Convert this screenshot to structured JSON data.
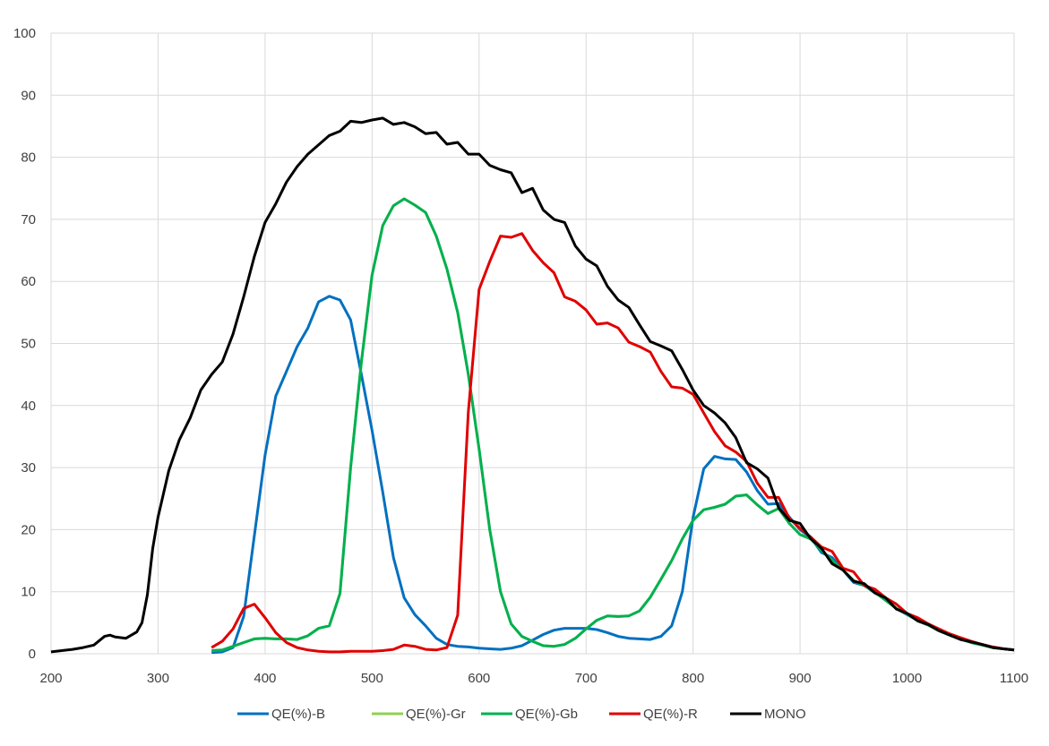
{
  "chart_data": {
    "type": "line",
    "title": "",
    "xlabel": "",
    "ylabel": "",
    "xlim": [
      200,
      1100
    ],
    "ylim": [
      0,
      100
    ],
    "xticks": [
      200,
      300,
      400,
      500,
      600,
      700,
      800,
      900,
      1000,
      1100
    ],
    "yticks": [
      0,
      10,
      20,
      30,
      40,
      50,
      60,
      70,
      80,
      90,
      100
    ],
    "grid": true,
    "legend_position": "bottom",
    "series": [
      {
        "name": "QE(%)-B",
        "color": "#0070c0",
        "x": [
          350,
          360,
          370,
          380,
          390,
          400,
          410,
          420,
          430,
          440,
          450,
          460,
          470,
          480,
          490,
          500,
          510,
          520,
          530,
          540,
          550,
          560,
          570,
          580,
          590,
          600,
          610,
          620,
          630,
          640,
          650,
          660,
          670,
          680,
          690,
          700,
          710,
          720,
          730,
          740,
          750,
          760,
          770,
          780,
          790,
          800,
          810,
          820,
          830,
          840,
          850,
          860,
          870,
          880,
          890,
          900,
          910,
          920,
          930,
          940,
          950,
          960,
          970,
          980,
          990,
          1000,
          1010,
          1020,
          1030,
          1040,
          1050,
          1060,
          1070,
          1080,
          1090,
          1100
        ],
        "y": [
          0.2,
          0.3,
          1,
          6,
          19,
          32,
          41.5,
          45.5,
          49.5,
          52.5,
          56.7,
          57.6,
          57,
          53.8,
          45,
          36,
          26,
          15.5,
          9,
          6.3,
          4.5,
          2.5,
          1.5,
          1.2,
          1.1,
          0.9,
          0.8,
          0.7,
          0.9,
          1.3,
          2.2,
          3.1,
          3.8,
          4.1,
          4.1,
          4.1,
          3.9,
          3.4,
          2.8,
          2.5,
          2.4,
          2.3,
          2.8,
          4.5,
          10,
          22,
          29.8,
          31.8,
          31.4,
          31.3,
          29.3,
          26.3,
          24.1,
          24.2,
          22,
          20,
          18.7,
          16.3,
          15.5,
          13.5,
          11.5,
          11,
          9.8,
          8.8,
          7.3,
          6.3,
          5.4,
          4.7,
          3.8,
          3,
          2.4,
          1.8,
          1.5,
          1.1,
          0.8,
          0.6
        ]
      },
      {
        "name": "QE(%)-Gr",
        "color": "#92d050",
        "x": [
          350,
          360,
          370,
          380,
          390,
          400,
          410,
          420,
          430,
          440,
          450,
          460,
          470,
          480,
          490,
          500,
          510,
          520,
          530,
          540,
          550,
          560,
          570,
          580,
          590,
          600,
          610,
          620,
          630,
          640,
          650,
          660,
          670,
          680,
          690,
          700,
          710,
          720,
          730,
          740,
          750,
          760,
          770,
          780,
          790,
          800,
          810,
          820,
          830,
          840,
          850,
          860,
          870,
          880,
          890,
          900,
          910,
          920,
          930,
          940,
          950,
          960,
          970,
          980,
          990,
          1000,
          1010,
          1020,
          1030,
          1040,
          1050,
          1060,
          1070,
          1080,
          1090,
          1100
        ],
        "y": [
          0.5,
          0.6,
          1.2,
          1.8,
          2.4,
          2.5,
          2.4,
          2.4,
          2.3,
          2.9,
          4.1,
          4.5,
          9.7,
          30,
          47,
          61,
          69,
          72.2,
          73.3,
          72.3,
          71.1,
          67.3,
          62,
          55,
          45,
          33,
          20,
          10,
          4.8,
          2.8,
          2,
          1.3,
          1.2,
          1.5,
          2.5,
          4,
          5.4,
          6.1,
          6,
          6.1,
          6.9,
          9.1,
          12,
          15,
          18.5,
          21.5,
          23.2,
          23.6,
          24.1,
          25.4,
          25.6,
          24,
          22.6,
          23.4,
          21,
          19.2,
          18.5,
          16.7,
          15,
          13.5,
          11.8,
          11,
          9.9,
          8.6,
          7.3,
          6.4,
          5.3,
          4.6,
          3.7,
          3,
          2.4,
          1.8,
          1.4,
          1,
          0.8,
          0.6
        ]
      },
      {
        "name": "QE(%)-Gb",
        "color": "#00b050",
        "x": [
          350,
          360,
          370,
          380,
          390,
          400,
          410,
          420,
          430,
          440,
          450,
          460,
          470,
          480,
          490,
          500,
          510,
          520,
          530,
          540,
          550,
          560,
          570,
          580,
          590,
          600,
          610,
          620,
          630,
          640,
          650,
          660,
          670,
          680,
          690,
          700,
          710,
          720,
          730,
          740,
          750,
          760,
          770,
          780,
          790,
          800,
          810,
          820,
          830,
          840,
          850,
          860,
          870,
          880,
          890,
          900,
          910,
          920,
          930,
          940,
          950,
          960,
          970,
          980,
          990,
          1000,
          1010,
          1020,
          1030,
          1040,
          1050,
          1060,
          1070,
          1080,
          1090,
          1100
        ],
        "y": [
          0.5,
          0.6,
          1.2,
          1.8,
          2.4,
          2.5,
          2.4,
          2.4,
          2.3,
          2.9,
          4.1,
          4.5,
          9.7,
          30,
          47,
          61,
          69,
          72.2,
          73.3,
          72.3,
          71.1,
          67.3,
          62,
          55,
          45,
          33,
          20,
          10,
          4.8,
          2.8,
          2,
          1.3,
          1.2,
          1.5,
          2.5,
          4,
          5.4,
          6.1,
          6,
          6.1,
          6.9,
          9.1,
          12,
          15,
          18.5,
          21.5,
          23.2,
          23.6,
          24.1,
          25.4,
          25.6,
          24,
          22.6,
          23.4,
          21,
          19.2,
          18.5,
          16.7,
          15,
          13.5,
          11.8,
          11,
          9.9,
          8.6,
          7.3,
          6.4,
          5.3,
          4.6,
          3.7,
          3,
          2.4,
          1.8,
          1.4,
          1,
          0.8,
          0.6
        ]
      },
      {
        "name": "QE(%)-R",
        "color": "#e00000",
        "x": [
          350,
          360,
          370,
          380,
          390,
          400,
          410,
          420,
          430,
          440,
          450,
          460,
          470,
          480,
          490,
          500,
          510,
          520,
          530,
          540,
          550,
          560,
          570,
          580,
          590,
          600,
          610,
          620,
          630,
          640,
          650,
          660,
          670,
          680,
          690,
          700,
          710,
          720,
          730,
          740,
          750,
          760,
          770,
          780,
          790,
          800,
          810,
          820,
          830,
          840,
          850,
          860,
          870,
          880,
          890,
          900,
          910,
          920,
          930,
          940,
          950,
          960,
          970,
          980,
          990,
          1000,
          1010,
          1020,
          1030,
          1040,
          1050,
          1060,
          1070,
          1080,
          1090,
          1100
        ],
        "y": [
          1,
          2,
          4,
          7.3,
          8,
          5.8,
          3.4,
          1.8,
          1,
          0.6,
          0.4,
          0.3,
          0.3,
          0.4,
          0.4,
          0.4,
          0.5,
          0.7,
          1.4,
          1.2,
          0.7,
          0.6,
          1,
          6.2,
          39,
          58.7,
          63.2,
          67.3,
          67.1,
          67.7,
          65,
          63,
          61.4,
          57.5,
          56.8,
          55.4,
          53.1,
          53.3,
          52.5,
          50.2,
          49.5,
          48.6,
          45.5,
          43,
          42.8,
          41.8,
          38.8,
          35.8,
          33.5,
          32.5,
          31,
          27.5,
          25.2,
          25.2,
          21.8,
          20.2,
          18.8,
          17.2,
          16.5,
          13.8,
          13.2,
          11,
          10.4,
          9,
          8,
          6.5,
          5.8,
          4.8,
          4,
          3.2,
          2.6,
          2,
          1.5,
          1.1,
          0.8,
          0.6
        ]
      },
      {
        "name": "MONO",
        "color": "#000000",
        "x": [
          200,
          210,
          220,
          230,
          240,
          250,
          255,
          260,
          270,
          280,
          285,
          290,
          295,
          300,
          310,
          320,
          330,
          340,
          350,
          360,
          370,
          380,
          390,
          400,
          410,
          420,
          430,
          440,
          450,
          460,
          470,
          480,
          490,
          500,
          510,
          520,
          530,
          540,
          550,
          560,
          570,
          580,
          590,
          600,
          610,
          620,
          630,
          640,
          650,
          660,
          670,
          680,
          690,
          700,
          710,
          720,
          730,
          740,
          750,
          760,
          770,
          780,
          790,
          800,
          810,
          820,
          830,
          840,
          850,
          860,
          870,
          880,
          890,
          900,
          910,
          920,
          930,
          940,
          950,
          960,
          970,
          980,
          990,
          1000,
          1010,
          1020,
          1030,
          1040,
          1050,
          1060,
          1070,
          1080,
          1090,
          1100
        ],
        "y": [
          0.3,
          0.5,
          0.7,
          1,
          1.4,
          2.8,
          3,
          2.7,
          2.5,
          3.5,
          5,
          9.5,
          17,
          22,
          29.5,
          34.5,
          38,
          42.5,
          45,
          47,
          51.5,
          57.5,
          64,
          69.5,
          72.5,
          76,
          78.5,
          80.5,
          82,
          83.5,
          84.2,
          85.8,
          85.6,
          86,
          86.3,
          85.3,
          85.6,
          84.9,
          83.8,
          84,
          82.1,
          82.4,
          80.5,
          80.5,
          78.7,
          78,
          77.5,
          74.3,
          75,
          71.5,
          70,
          69.5,
          65.7,
          63.6,
          62.5,
          59.2,
          57,
          55.8,
          53,
          50.3,
          49.6,
          48.8,
          45.8,
          42.5,
          40,
          38.8,
          37.2,
          34.8,
          30.8,
          29.8,
          28.3,
          23.5,
          21.5,
          21,
          18.5,
          17,
          14.5,
          13.5,
          11.7,
          11.3,
          9.8,
          9,
          7.2,
          6.5,
          5.3,
          4.7,
          3.7,
          3,
          2.3,
          1.9,
          1.5,
          1,
          0.8,
          0.6
        ]
      }
    ]
  }
}
